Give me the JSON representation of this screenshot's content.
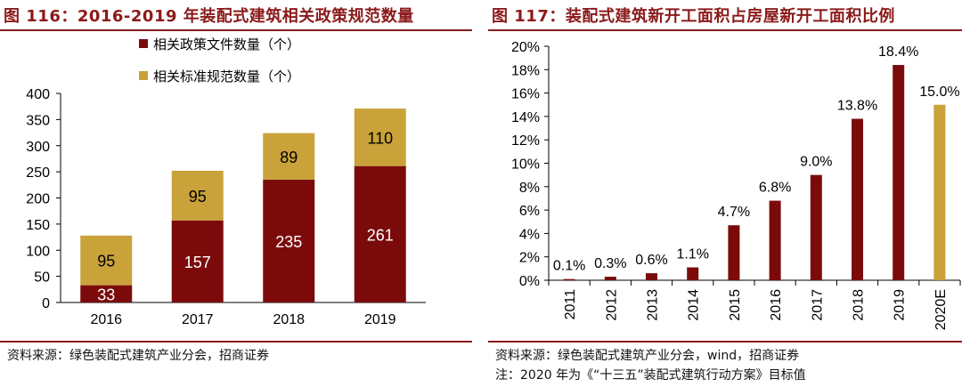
{
  "left": {
    "title": "图 116：2016-2019 年装配式建筑相关政策规范数量",
    "source": "资料来源：绿色装配式建筑产业分会，招商证券"
  },
  "right": {
    "title": "图 117：装配式建筑新开工面积占房屋新开工面积比例",
    "source": "资料来源：绿色装配式建筑产业分会，wind，招商证券",
    "note": "注：2020 年为《“十三五”装配式建筑行动方案》目标值"
  },
  "chart_data": [
    {
      "type": "bar",
      "stacked": true,
      "categories": [
        "2016",
        "2017",
        "2018",
        "2019"
      ],
      "series": [
        {
          "name": "相关政策文件数量（个）",
          "values": [
            33,
            157,
            235,
            261
          ],
          "color": "#7b0b0b"
        },
        {
          "name": "相关标准规范数量（个）",
          "values": [
            95,
            95,
            89,
            110
          ],
          "color": "#c9a23a"
        }
      ],
      "ylim": [
        0,
        400
      ],
      "yticks": [
        "0",
        "50",
        "100",
        "150",
        "200",
        "250",
        "300",
        "350",
        "400"
      ],
      "legend_position": "top",
      "grid": false
    },
    {
      "type": "bar",
      "categories": [
        "2011",
        "2012",
        "2013",
        "2014",
        "2015",
        "2016",
        "2017",
        "2018",
        "2019",
        "2020E"
      ],
      "values": [
        0.1,
        0.3,
        0.6,
        1.1,
        4.7,
        6.8,
        9.0,
        13.8,
        18.4,
        15.0
      ],
      "labels": [
        "0.1%",
        "0.3%",
        "0.6%",
        "1.1%",
        "4.7%",
        "6.8%",
        "9.0%",
        "13.8%",
        "18.4%",
        "15.0%"
      ],
      "colors": [
        "#7b0b0b",
        "#7b0b0b",
        "#7b0b0b",
        "#7b0b0b",
        "#7b0b0b",
        "#7b0b0b",
        "#7b0b0b",
        "#7b0b0b",
        "#7b0b0b",
        "#c9a23a"
      ],
      "ylim": [
        0,
        20
      ],
      "yticks": [
        "0%",
        "2%",
        "4%",
        "6%",
        "8%",
        "10%",
        "12%",
        "14%",
        "16%",
        "18%",
        "20%"
      ],
      "grid": false
    }
  ]
}
